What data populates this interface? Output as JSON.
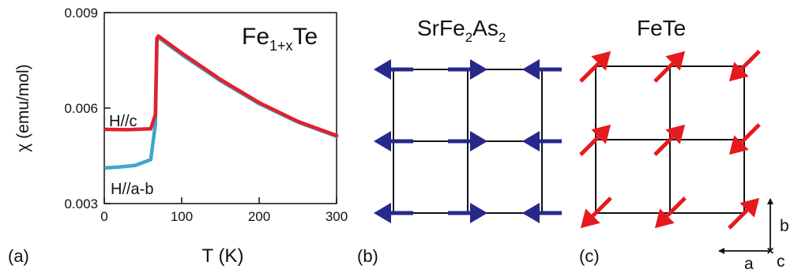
{
  "panels": {
    "a": {
      "label": "(a)"
    },
    "b": {
      "label": "(b)",
      "title_main": "SrFe",
      "title_sub1": "2",
      "title_mid": "As",
      "title_sub2": "2"
    },
    "c": {
      "label": "(c)",
      "title": "FeTe"
    }
  },
  "chart_data": {
    "type": "line",
    "title_main": "Fe",
    "title_sub": "1+x",
    "title_tail": "Te",
    "xlabel": "T (K)",
    "ylabel": "χ (emu/mol)",
    "xlim": [
      0,
      300
    ],
    "ylim": [
      0.003,
      0.009
    ],
    "xticks": [
      0,
      100,
      200,
      300
    ],
    "yticks": [
      "0.003",
      "0.006",
      "0.009"
    ],
    "grid": false,
    "series": [
      {
        "name": "H//c",
        "color": "#e41f2d",
        "x": [
          2,
          30,
          60,
          66,
          68,
          70,
          100,
          150,
          200,
          250,
          300
        ],
        "y": [
          0.00533,
          0.00532,
          0.00535,
          0.0058,
          0.0082,
          0.00826,
          0.00773,
          0.0069,
          0.00617,
          0.00558,
          0.00514
        ]
      },
      {
        "name": "H//a-b",
        "color": "#3ea6cc",
        "x": [
          2,
          20,
          40,
          60,
          66,
          68,
          70,
          100,
          150,
          200,
          250,
          300
        ],
        "y": [
          0.00412,
          0.00415,
          0.0042,
          0.00438,
          0.0055,
          0.0081,
          0.00822,
          0.00768,
          0.00686,
          0.00614,
          0.00556,
          0.00511
        ]
      }
    ]
  },
  "lattice_b": {
    "spin_color": "#27288c",
    "spins": [
      "left",
      "right",
      "left",
      "left",
      "right",
      "left",
      "left",
      "right",
      "left"
    ]
  },
  "lattice_c": {
    "spin_color": "#e5191e",
    "spins": [
      "ne",
      "ne",
      "sw",
      "ne",
      "ne",
      "sw",
      "sw",
      "sw",
      "ne"
    ]
  },
  "axes_legend": {
    "a": "a",
    "b": "b",
    "c": "c"
  }
}
